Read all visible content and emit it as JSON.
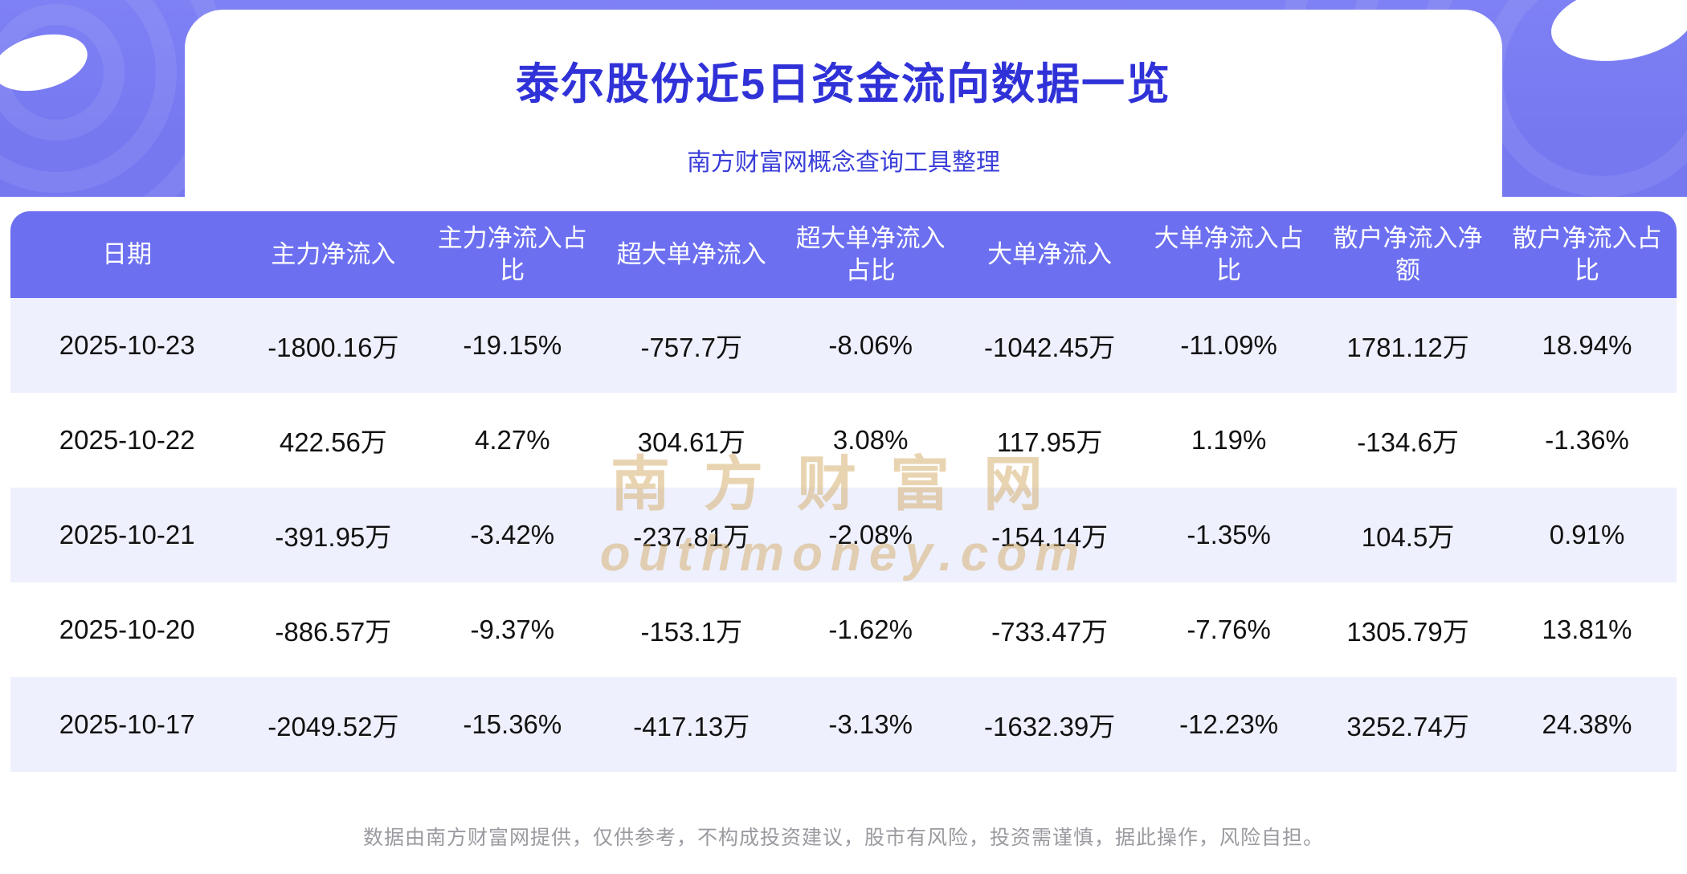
{
  "header": {
    "title": "泰尔股份近5日资金流向数据一览",
    "subtitle": "南方财富网概念查询工具整理"
  },
  "chart_data": {
    "type": "table",
    "title": "泰尔股份近5日资金流向数据一览",
    "columns": [
      "日期",
      "主力净流入",
      "主力净流入占比",
      "超大单净流入",
      "超大单净流入占比",
      "大单净流入",
      "大单净流入占比",
      "散户净流入净额",
      "散户净流入占比"
    ],
    "rows": [
      [
        "2025-10-23",
        "-1800.16万",
        "-19.15%",
        "-757.7万",
        "-8.06%",
        "-1042.45万",
        "-11.09%",
        "1781.12万",
        "18.94%"
      ],
      [
        "2025-10-22",
        "422.56万",
        "4.27%",
        "304.61万",
        "3.08%",
        "117.95万",
        "1.19%",
        "-134.6万",
        "-1.36%"
      ],
      [
        "2025-10-21",
        "-391.95万",
        "-3.42%",
        "-237.81万",
        "-2.08%",
        "-154.14万",
        "-1.35%",
        "104.5万",
        "0.91%"
      ],
      [
        "2025-10-20",
        "-886.57万",
        "-9.37%",
        "-153.1万",
        "-1.62%",
        "-733.47万",
        "-7.76%",
        "1305.79万",
        "13.81%"
      ],
      [
        "2025-10-17",
        "-2049.52万",
        "-15.36%",
        "-417.13万",
        "-3.13%",
        "-1632.39万",
        "-12.23%",
        "3252.74万",
        "24.38%"
      ]
    ]
  },
  "watermark": {
    "line1": "南方财富网",
    "line2": "outhmoney.com"
  },
  "footer": {
    "disclaimer": "数据由南方财富网提供，仅供参考，不构成投资建议，股市有风险，投资需谨慎，据此操作，风险自担。"
  },
  "colors": {
    "hero_bg": "#7678F0",
    "title_color": "#3032D8",
    "subtitle_color": "#3A3ED8",
    "table_header_bg": "#6C6FF0",
    "row_alt_bg": "#EEF0FD",
    "cell_color": "#111111",
    "footer_color": "#9A9AA0"
  }
}
